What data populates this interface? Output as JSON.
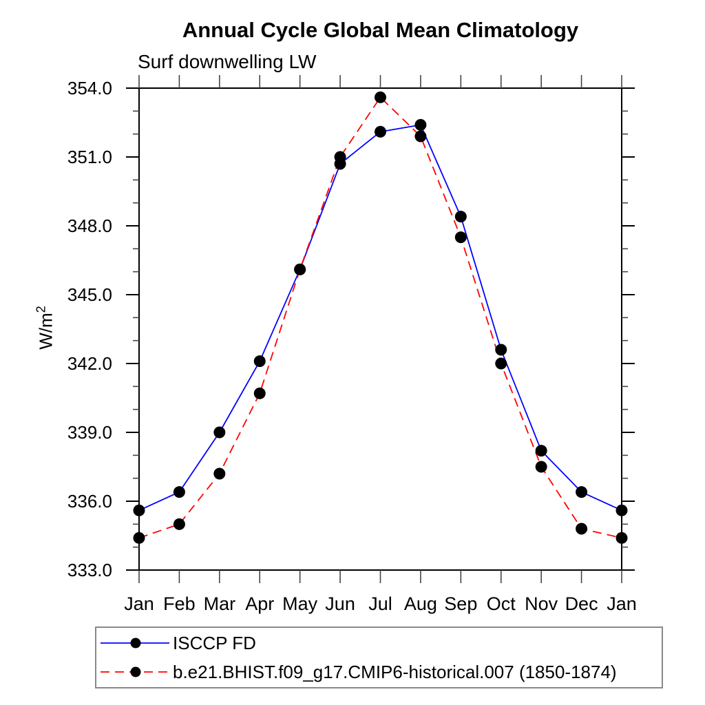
{
  "chart_data": {
    "type": "line",
    "title": "Annual Cycle Global Mean Climatology",
    "subtitle": "Surf downwelling LW",
    "unit": {
      "prefix": "W/m",
      "exponent": "2"
    },
    "categories": [
      "Jan",
      "Feb",
      "Mar",
      "Apr",
      "May",
      "Jun",
      "Jul",
      "Aug",
      "Sep",
      "Oct",
      "Nov",
      "Dec",
      "Jan"
    ],
    "ylim": [
      333.0,
      354.0
    ],
    "ytick_values": [
      333.0,
      336.0,
      339.0,
      342.0,
      345.0,
      348.0,
      351.0,
      354.0
    ],
    "ytick_labels": [
      "333.0",
      "336.0",
      "339.0",
      "342.0",
      "345.0",
      "348.0",
      "351.0",
      "354.0"
    ],
    "ytick_minor_step": 1.0,
    "grid": false,
    "legend_position": "bottom-left",
    "marker_color": "#000000",
    "axis_color": "#000000",
    "series": [
      {
        "name": "ISCCP FD",
        "color": "#0000ff",
        "line_style": "solid",
        "marker": "circle",
        "values": [
          335.6,
          336.4,
          339.0,
          342.1,
          346.1,
          350.7,
          352.1,
          352.4,
          348.4,
          342.6,
          338.2,
          336.4,
          335.6
        ]
      },
      {
        "name": "b.e21.BHIST.f09_g17.CMIP6-historical.007 (1850-1874)",
        "color": "#ff0000",
        "line_style": "dashed",
        "marker": "circle",
        "values": [
          334.4,
          335.0,
          337.2,
          340.7,
          346.1,
          351.0,
          353.6,
          351.9,
          347.5,
          342.0,
          337.5,
          334.8,
          334.4
        ]
      }
    ]
  }
}
